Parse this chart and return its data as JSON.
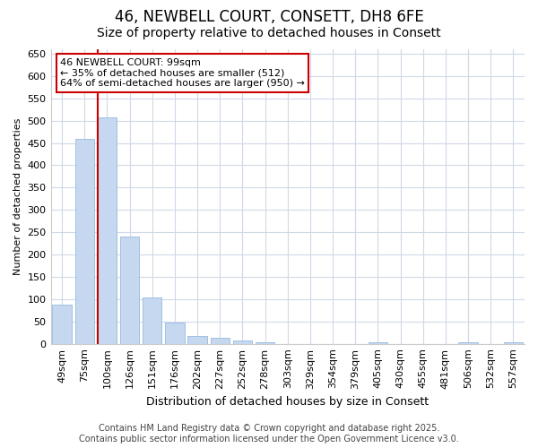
{
  "title1": "46, NEWBELL COURT, CONSETT, DH8 6FE",
  "title2": "Size of property relative to detached houses in Consett",
  "xlabel": "Distribution of detached houses by size in Consett",
  "ylabel": "Number of detached properties",
  "categories": [
    "49sqm",
    "75sqm",
    "100sqm",
    "126sqm",
    "151sqm",
    "176sqm",
    "202sqm",
    "227sqm",
    "252sqm",
    "278sqm",
    "303sqm",
    "329sqm",
    "354sqm",
    "379sqm",
    "405sqm",
    "430sqm",
    "455sqm",
    "481sqm",
    "506sqm",
    "532sqm",
    "557sqm"
  ],
  "values": [
    88,
    460,
    507,
    240,
    103,
    48,
    18,
    13,
    8,
    3,
    0,
    0,
    0,
    0,
    3,
    0,
    0,
    0,
    3,
    0,
    3
  ],
  "bar_color": "#c5d8f0",
  "bar_edge_color": "#a0c0e0",
  "vline_x_idx": 2,
  "annotation_line1": "46 NEWBELL COURT: 99sqm",
  "annotation_line2": "← 35% of detached houses are smaller (512)",
  "annotation_line3": "64% of semi-detached houses are larger (950) →",
  "vline_color": "#cc0000",
  "footer1": "Contains HM Land Registry data © Crown copyright and database right 2025.",
  "footer2": "Contains public sector information licensed under the Open Government Licence v3.0.",
  "ylim": [
    0,
    660
  ],
  "yticks": [
    0,
    50,
    100,
    150,
    200,
    250,
    300,
    350,
    400,
    450,
    500,
    550,
    600,
    650
  ],
  "bg_color": "#ffffff",
  "plot_bg_color": "#ffffff",
  "grid_color": "#d0d8e8",
  "title1_fontsize": 12,
  "title2_fontsize": 10,
  "xlabel_fontsize": 9,
  "ylabel_fontsize": 8,
  "tick_fontsize": 8,
  "annotation_fontsize": 8,
  "footer_fontsize": 7
}
